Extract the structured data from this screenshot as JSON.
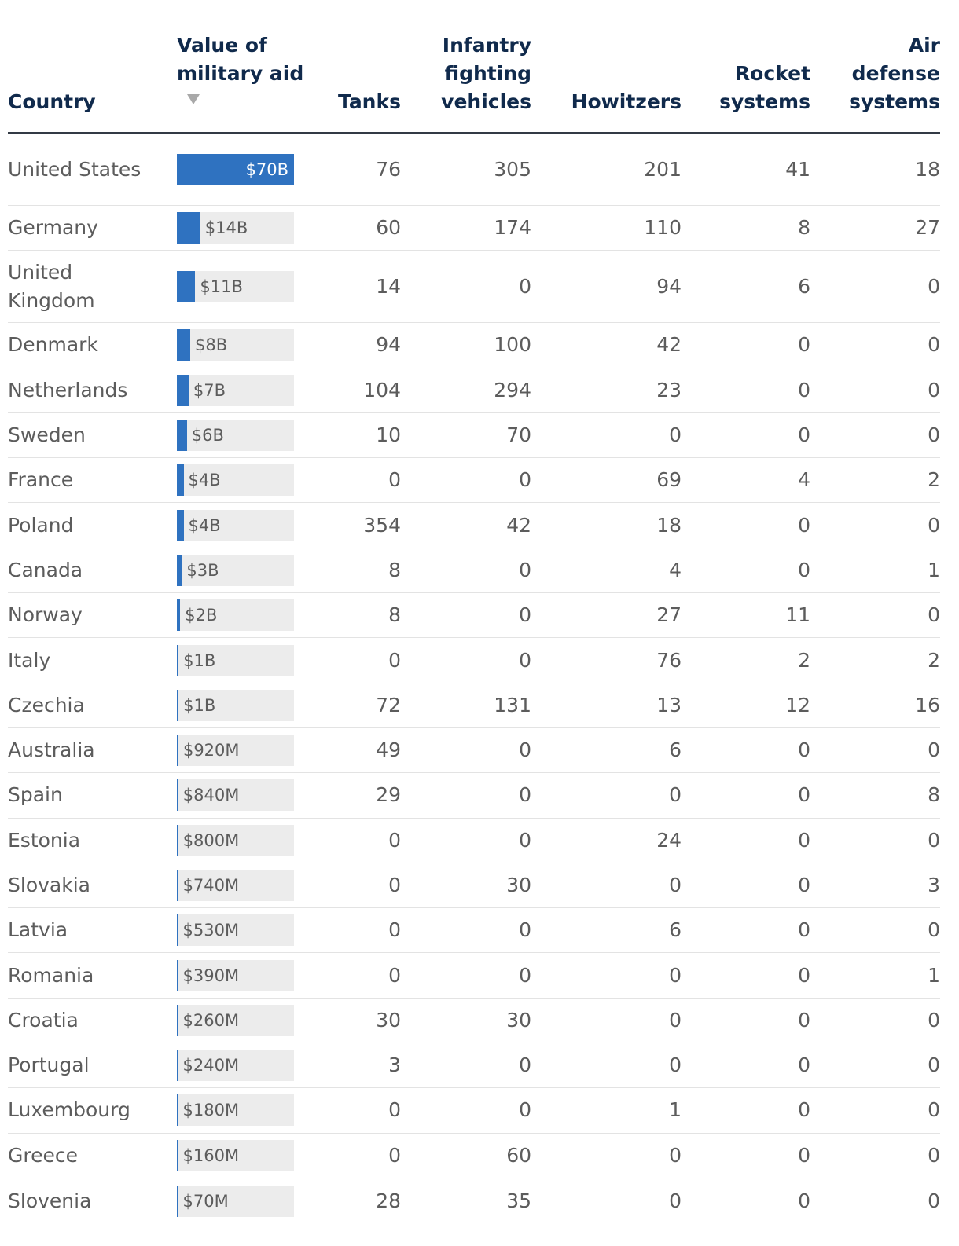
{
  "chart_data": {
    "type": "table",
    "columns": [
      "Country",
      "Value of military aid",
      "Tanks",
      "Infantry fighting vehicles",
      "Howitzers",
      "Rocket systems",
      "Air defense systems"
    ],
    "sort_indicator": "descending",
    "bar_max_billions": 70,
    "rows": [
      {
        "country": "United States",
        "aid_label": "$70B",
        "aid_billions": 70,
        "tanks": "76",
        "ifv": "305",
        "howitzers": "201",
        "rockets": "41",
        "air_defense": "18"
      },
      {
        "country": "Germany",
        "aid_label": "$14B",
        "aid_billions": 14,
        "tanks": "60",
        "ifv": "174",
        "howitzers": "110",
        "rockets": "8",
        "air_defense": "27"
      },
      {
        "country": "United Kingdom",
        "aid_label": "$11B",
        "aid_billions": 11,
        "tanks": "14",
        "ifv": "0",
        "howitzers": "94",
        "rockets": "6",
        "air_defense": "0"
      },
      {
        "country": "Denmark",
        "aid_label": "$8B",
        "aid_billions": 8,
        "tanks": "94",
        "ifv": "100",
        "howitzers": "42",
        "rockets": "0",
        "air_defense": "0"
      },
      {
        "country": "Netherlands",
        "aid_label": "$7B",
        "aid_billions": 7,
        "tanks": "104",
        "ifv": "294",
        "howitzers": "23",
        "rockets": "0",
        "air_defense": "0"
      },
      {
        "country": "Sweden",
        "aid_label": "$6B",
        "aid_billions": 6,
        "tanks": "10",
        "ifv": "70",
        "howitzers": "0",
        "rockets": "0",
        "air_defense": "0"
      },
      {
        "country": "France",
        "aid_label": "$4B",
        "aid_billions": 4,
        "tanks": "0",
        "ifv": "0",
        "howitzers": "69",
        "rockets": "4",
        "air_defense": "2"
      },
      {
        "country": "Poland",
        "aid_label": "$4B",
        "aid_billions": 4,
        "tanks": "354",
        "ifv": "42",
        "howitzers": "18",
        "rockets": "0",
        "air_defense": "0"
      },
      {
        "country": "Canada",
        "aid_label": "$3B",
        "aid_billions": 3,
        "tanks": "8",
        "ifv": "0",
        "howitzers": "4",
        "rockets": "0",
        "air_defense": "1"
      },
      {
        "country": "Norway",
        "aid_label": "$2B",
        "aid_billions": 2,
        "tanks": "8",
        "ifv": "0",
        "howitzers": "27",
        "rockets": "11",
        "air_defense": "0"
      },
      {
        "country": "Italy",
        "aid_label": "$1B",
        "aid_billions": 1,
        "tanks": "0",
        "ifv": "0",
        "howitzers": "76",
        "rockets": "2",
        "air_defense": "2"
      },
      {
        "country": "Czechia",
        "aid_label": "$1B",
        "aid_billions": 1,
        "tanks": "72",
        "ifv": "131",
        "howitzers": "13",
        "rockets": "12",
        "air_defense": "16"
      },
      {
        "country": "Australia",
        "aid_label": "$920M",
        "aid_billions": 0.92,
        "tanks": "49",
        "ifv": "0",
        "howitzers": "6",
        "rockets": "0",
        "air_defense": "0"
      },
      {
        "country": "Spain",
        "aid_label": "$840M",
        "aid_billions": 0.84,
        "tanks": "29",
        "ifv": "0",
        "howitzers": "0",
        "rockets": "0",
        "air_defense": "8"
      },
      {
        "country": "Estonia",
        "aid_label": "$800M",
        "aid_billions": 0.8,
        "tanks": "0",
        "ifv": "0",
        "howitzers": "24",
        "rockets": "0",
        "air_defense": "0"
      },
      {
        "country": "Slovakia",
        "aid_label": "$740M",
        "aid_billions": 0.74,
        "tanks": "0",
        "ifv": "30",
        "howitzers": "0",
        "rockets": "0",
        "air_defense": "3"
      },
      {
        "country": "Latvia",
        "aid_label": "$530M",
        "aid_billions": 0.53,
        "tanks": "0",
        "ifv": "0",
        "howitzers": "6",
        "rockets": "0",
        "air_defense": "0"
      },
      {
        "country": "Romania",
        "aid_label": "$390M",
        "aid_billions": 0.39,
        "tanks": "0",
        "ifv": "0",
        "howitzers": "0",
        "rockets": "0",
        "air_defense": "1"
      },
      {
        "country": "Croatia",
        "aid_label": "$260M",
        "aid_billions": 0.26,
        "tanks": "30",
        "ifv": "30",
        "howitzers": "0",
        "rockets": "0",
        "air_defense": "0"
      },
      {
        "country": "Portugal",
        "aid_label": "$240M",
        "aid_billions": 0.24,
        "tanks": "3",
        "ifv": "0",
        "howitzers": "0",
        "rockets": "0",
        "air_defense": "0"
      },
      {
        "country": "Luxembourg",
        "aid_label": "$180M",
        "aid_billions": 0.18,
        "tanks": "0",
        "ifv": "0",
        "howitzers": "1",
        "rockets": "0",
        "air_defense": "0"
      },
      {
        "country": "Greece",
        "aid_label": "$160M",
        "aid_billions": 0.16,
        "tanks": "0",
        "ifv": "60",
        "howitzers": "0",
        "rockets": "0",
        "air_defense": "0"
      },
      {
        "country": "Slovenia",
        "aid_label": "$70M",
        "aid_billions": 0.07,
        "tanks": "28",
        "ifv": "35",
        "howitzers": "0",
        "rockets": "0",
        "air_defense": "0"
      }
    ]
  },
  "header": {
    "country": "Country",
    "aid": [
      "Value of",
      "military aid"
    ],
    "tanks": [
      "Tanks"
    ],
    "ifv": [
      "Infantry",
      "fighting",
      "vehicles"
    ],
    "howitzers": [
      "Howitzers"
    ],
    "rockets": [
      "Rocket",
      "systems"
    ],
    "air_defense": [
      "Air",
      "defense",
      "systems"
    ]
  },
  "colors": {
    "bar": "#2f72c0",
    "bar_track": "#ececec",
    "header_text": "#102a4c",
    "body_text": "#5c5c5c"
  }
}
